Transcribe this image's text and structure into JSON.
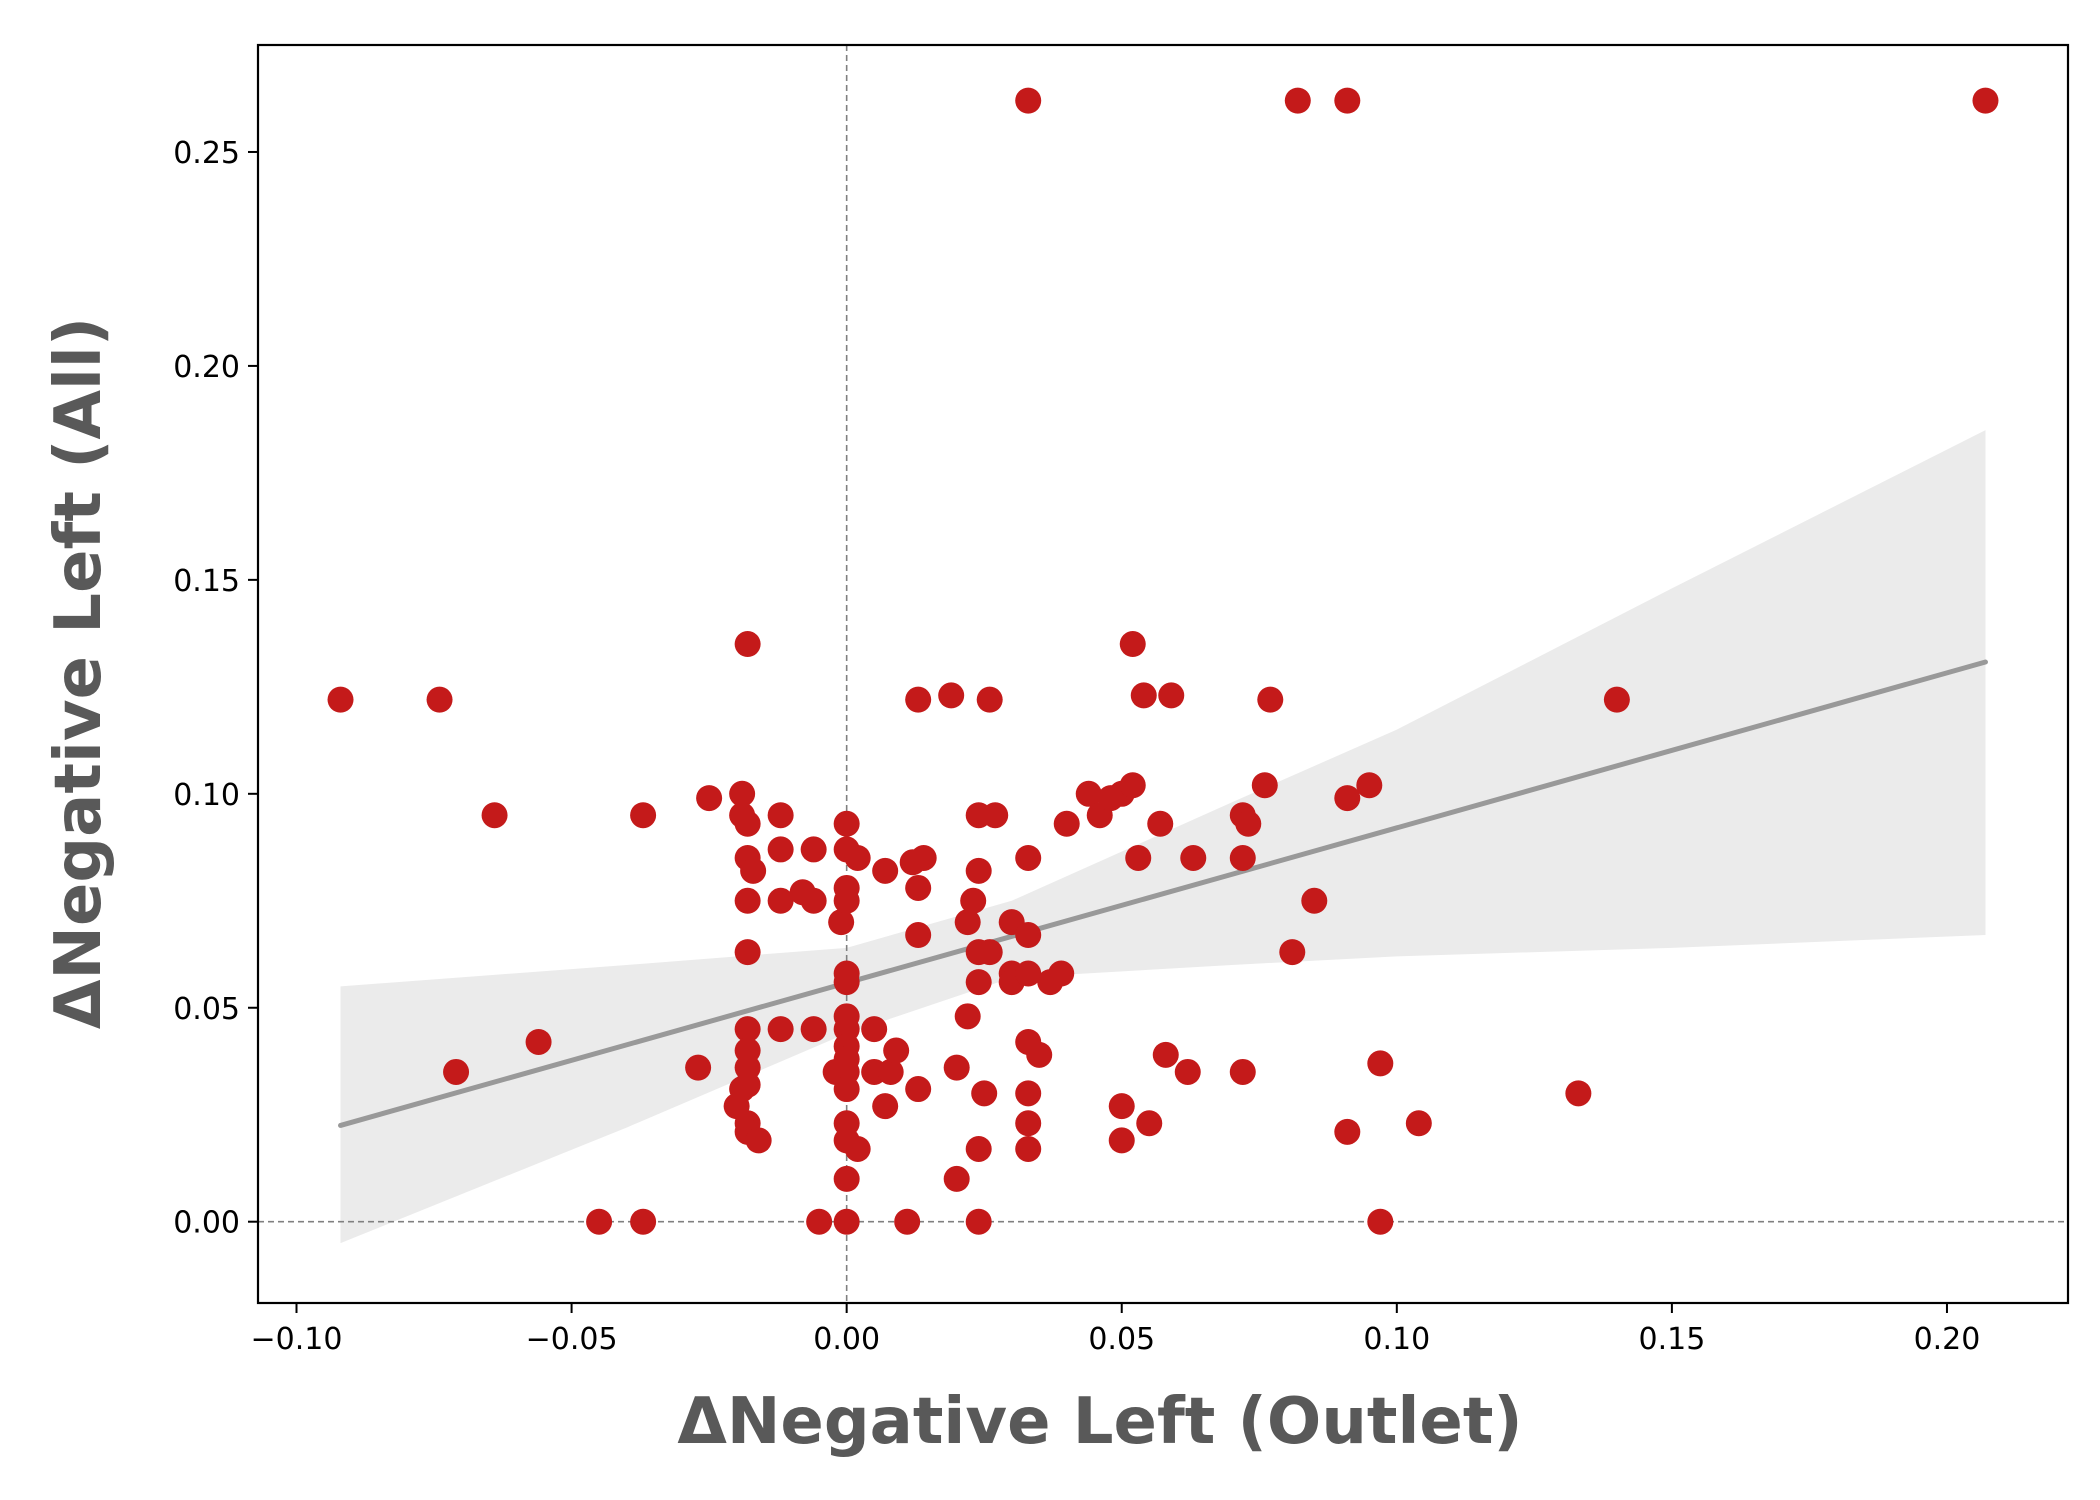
{
  "chart_data": {
    "type": "scatter",
    "title": "",
    "xlabel": "ΔNegative Left  (Outlet)",
    "ylabel": "ΔNegative Left  (All)",
    "xlim": [
      -0.107,
      0.222
    ],
    "ylim": [
      -0.019,
      0.275
    ],
    "xticks": [
      -0.1,
      -0.05,
      0.0,
      0.05,
      0.1,
      0.15,
      0.2
    ],
    "xtick_labels": [
      "−0.10",
      "−0.05",
      "0.00",
      "0.05",
      "0.10",
      "0.15",
      "0.20"
    ],
    "yticks": [
      0.0,
      0.05,
      0.1,
      0.15,
      0.2,
      0.25
    ],
    "ytick_labels": [
      "0.00",
      "0.05",
      "0.10",
      "0.15",
      "0.20",
      "0.25"
    ],
    "grid": false,
    "reference_lines": {
      "x": 0.0,
      "y": 0.0,
      "style": "dashed"
    },
    "colors": {
      "points": "#c41a1a",
      "regression_line": "#999999",
      "confidence_band": "#ebebeb",
      "reference_line": "#808080"
    },
    "regression": {
      "x": [
        -0.092,
        0.207
      ],
      "y": [
        0.0225,
        0.1308
      ]
    },
    "confidence_band": {
      "x": [
        -0.092,
        -0.04,
        0.0,
        0.03,
        0.07,
        0.1,
        0.15,
        0.207
      ],
      "upper": [
        0.055,
        0.06,
        0.064,
        0.075,
        0.098,
        0.115,
        0.148,
        0.185
      ],
      "lower": [
        -0.005,
        0.022,
        0.044,
        0.057,
        0.06,
        0.062,
        0.064,
        0.067
      ]
    },
    "series": [
      {
        "points": [
          [
            0.033,
            0.262
          ],
          [
            0.082,
            0.262
          ],
          [
            0.091,
            0.262
          ],
          [
            0.207,
            0.262
          ],
          [
            -0.092,
            0.122
          ],
          [
            -0.074,
            0.122
          ],
          [
            -0.018,
            0.135
          ],
          [
            0.052,
            0.135
          ],
          [
            0.013,
            0.122
          ],
          [
            0.019,
            0.123
          ],
          [
            0.026,
            0.122
          ],
          [
            0.054,
            0.123
          ],
          [
            0.059,
            0.123
          ],
          [
            0.077,
            0.122
          ],
          [
            0.14,
            0.122
          ],
          [
            -0.064,
            0.095
          ],
          [
            -0.037,
            0.095
          ],
          [
            -0.025,
            0.099
          ],
          [
            -0.019,
            0.1
          ],
          [
            -0.019,
            0.095
          ],
          [
            -0.018,
            0.093
          ],
          [
            -0.012,
            0.095
          ],
          [
            -0.012,
            0.087
          ],
          [
            -0.006,
            0.087
          ],
          [
            0.0,
            0.093
          ],
          [
            0.0,
            0.087
          ],
          [
            0.002,
            0.085
          ],
          [
            0.007,
            0.082
          ],
          [
            0.012,
            0.084
          ],
          [
            0.014,
            0.085
          ],
          [
            0.024,
            0.095
          ],
          [
            0.027,
            0.095
          ],
          [
            0.024,
            0.082
          ],
          [
            0.033,
            0.085
          ],
          [
            0.04,
            0.093
          ],
          [
            0.044,
            0.1
          ],
          [
            0.046,
            0.095
          ],
          [
            0.048,
            0.099
          ],
          [
            0.05,
            0.1
          ],
          [
            0.052,
            0.102
          ],
          [
            0.053,
            0.085
          ],
          [
            0.057,
            0.093
          ],
          [
            0.063,
            0.085
          ],
          [
            0.072,
            0.095
          ],
          [
            0.073,
            0.093
          ],
          [
            0.076,
            0.102
          ],
          [
            0.072,
            0.085
          ],
          [
            0.091,
            0.099
          ],
          [
            0.095,
            0.102
          ],
          [
            -0.018,
            0.085
          ],
          [
            -0.017,
            0.082
          ],
          [
            -0.018,
            0.075
          ],
          [
            -0.012,
            0.075
          ],
          [
            -0.008,
            0.077
          ],
          [
            -0.006,
            0.075
          ],
          [
            -0.001,
            0.07
          ],
          [
            0.0,
            0.078
          ],
          [
            0.0,
            0.075
          ],
          [
            0.013,
            0.078
          ],
          [
            0.013,
            0.067
          ],
          [
            0.023,
            0.075
          ],
          [
            0.022,
            0.07
          ],
          [
            0.03,
            0.07
          ],
          [
            0.033,
            0.067
          ],
          [
            0.024,
            0.063
          ],
          [
            0.026,
            0.063
          ],
          [
            0.085,
            0.075
          ],
          [
            0.081,
            0.063
          ],
          [
            -0.018,
            0.063
          ],
          [
            0.0,
            0.058
          ],
          [
            0.0,
            0.056
          ],
          [
            0.024,
            0.056
          ],
          [
            0.03,
            0.058
          ],
          [
            0.03,
            0.056
          ],
          [
            0.033,
            0.058
          ],
          [
            0.037,
            0.056
          ],
          [
            0.039,
            0.058
          ],
          [
            0.022,
            0.048
          ],
          [
            -0.056,
            0.042
          ],
          [
            -0.071,
            0.035
          ],
          [
            -0.027,
            0.036
          ],
          [
            -0.018,
            0.045
          ],
          [
            -0.018,
            0.04
          ],
          [
            -0.018,
            0.036
          ],
          [
            -0.012,
            0.045
          ],
          [
            -0.006,
            0.045
          ],
          [
            0.0,
            0.048
          ],
          [
            0.0,
            0.045
          ],
          [
            0.0,
            0.041
          ],
          [
            0.0,
            0.038
          ],
          [
            0.0,
            0.035
          ],
          [
            -0.002,
            0.035
          ],
          [
            0.005,
            0.045
          ],
          [
            0.005,
            0.035
          ],
          [
            0.008,
            0.035
          ],
          [
            0.009,
            0.04
          ],
          [
            0.02,
            0.036
          ],
          [
            0.033,
            0.042
          ],
          [
            0.035,
            0.039
          ],
          [
            0.058,
            0.039
          ],
          [
            0.062,
            0.035
          ],
          [
            0.072,
            0.035
          ],
          [
            0.097,
            0.037
          ],
          [
            -0.019,
            0.031
          ],
          [
            -0.018,
            0.032
          ],
          [
            -0.02,
            0.027
          ],
          [
            -0.018,
            0.023
          ],
          [
            -0.018,
            0.021
          ],
          [
            -0.016,
            0.019
          ],
          [
            0.0,
            0.031
          ],
          [
            0.0,
            0.023
          ],
          [
            0.0,
            0.019
          ],
          [
            0.002,
            0.017
          ],
          [
            0.007,
            0.027
          ],
          [
            0.013,
            0.031
          ],
          [
            0.025,
            0.03
          ],
          [
            0.024,
            0.017
          ],
          [
            0.033,
            0.03
          ],
          [
            0.033,
            0.023
          ],
          [
            0.033,
            0.017
          ],
          [
            0.05,
            0.027
          ],
          [
            0.05,
            0.019
          ],
          [
            0.055,
            0.023
          ],
          [
            0.091,
            0.021
          ],
          [
            0.104,
            0.023
          ],
          [
            0.133,
            0.03
          ],
          [
            0.0,
            0.01
          ],
          [
            0.02,
            0.01
          ],
          [
            -0.045,
            0.0
          ],
          [
            -0.037,
            0.0
          ],
          [
            -0.005,
            0.0
          ],
          [
            0.0,
            0.0
          ],
          [
            0.011,
            0.0
          ],
          [
            0.024,
            0.0
          ],
          [
            0.097,
            0.0
          ]
        ]
      }
    ]
  }
}
